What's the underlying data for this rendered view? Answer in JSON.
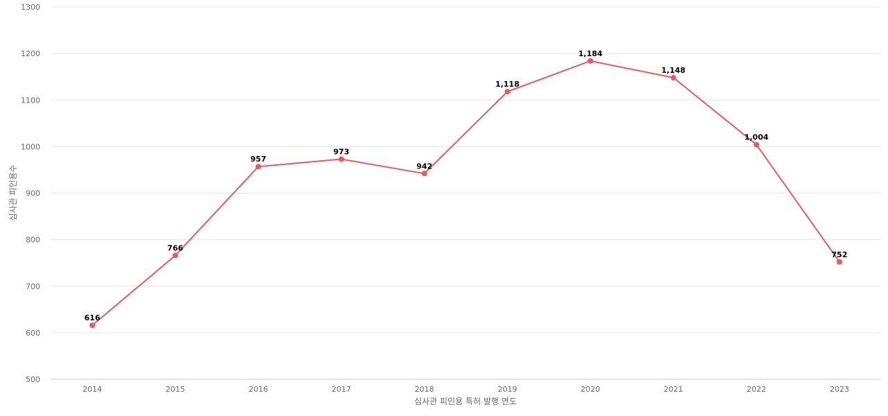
{
  "chart_data": {
    "type": "line",
    "title": "",
    "xlabel": "심사관 피인용 특허 발행 연도",
    "ylabel": "심사관 피인용수",
    "categories": [
      "2014",
      "2015",
      "2016",
      "2017",
      "2018",
      "2019",
      "2020",
      "2021",
      "2022",
      "2023"
    ],
    "series": [
      {
        "values": [
          616,
          766,
          957,
          973,
          942,
          1118,
          1184,
          1148,
          1004,
          752
        ],
        "labels": [
          "616",
          "766",
          "957",
          "973",
          "942",
          "1,118",
          "1,184",
          "1,148",
          "1,004",
          "752"
        ],
        "color": "#eb5a5a"
      }
    ],
    "ylim": [
      500,
      1300
    ],
    "yticks": [
      500,
      600,
      700,
      800,
      900,
      1000,
      1100,
      1200,
      1300
    ],
    "grid": true,
    "legend": "none"
  }
}
